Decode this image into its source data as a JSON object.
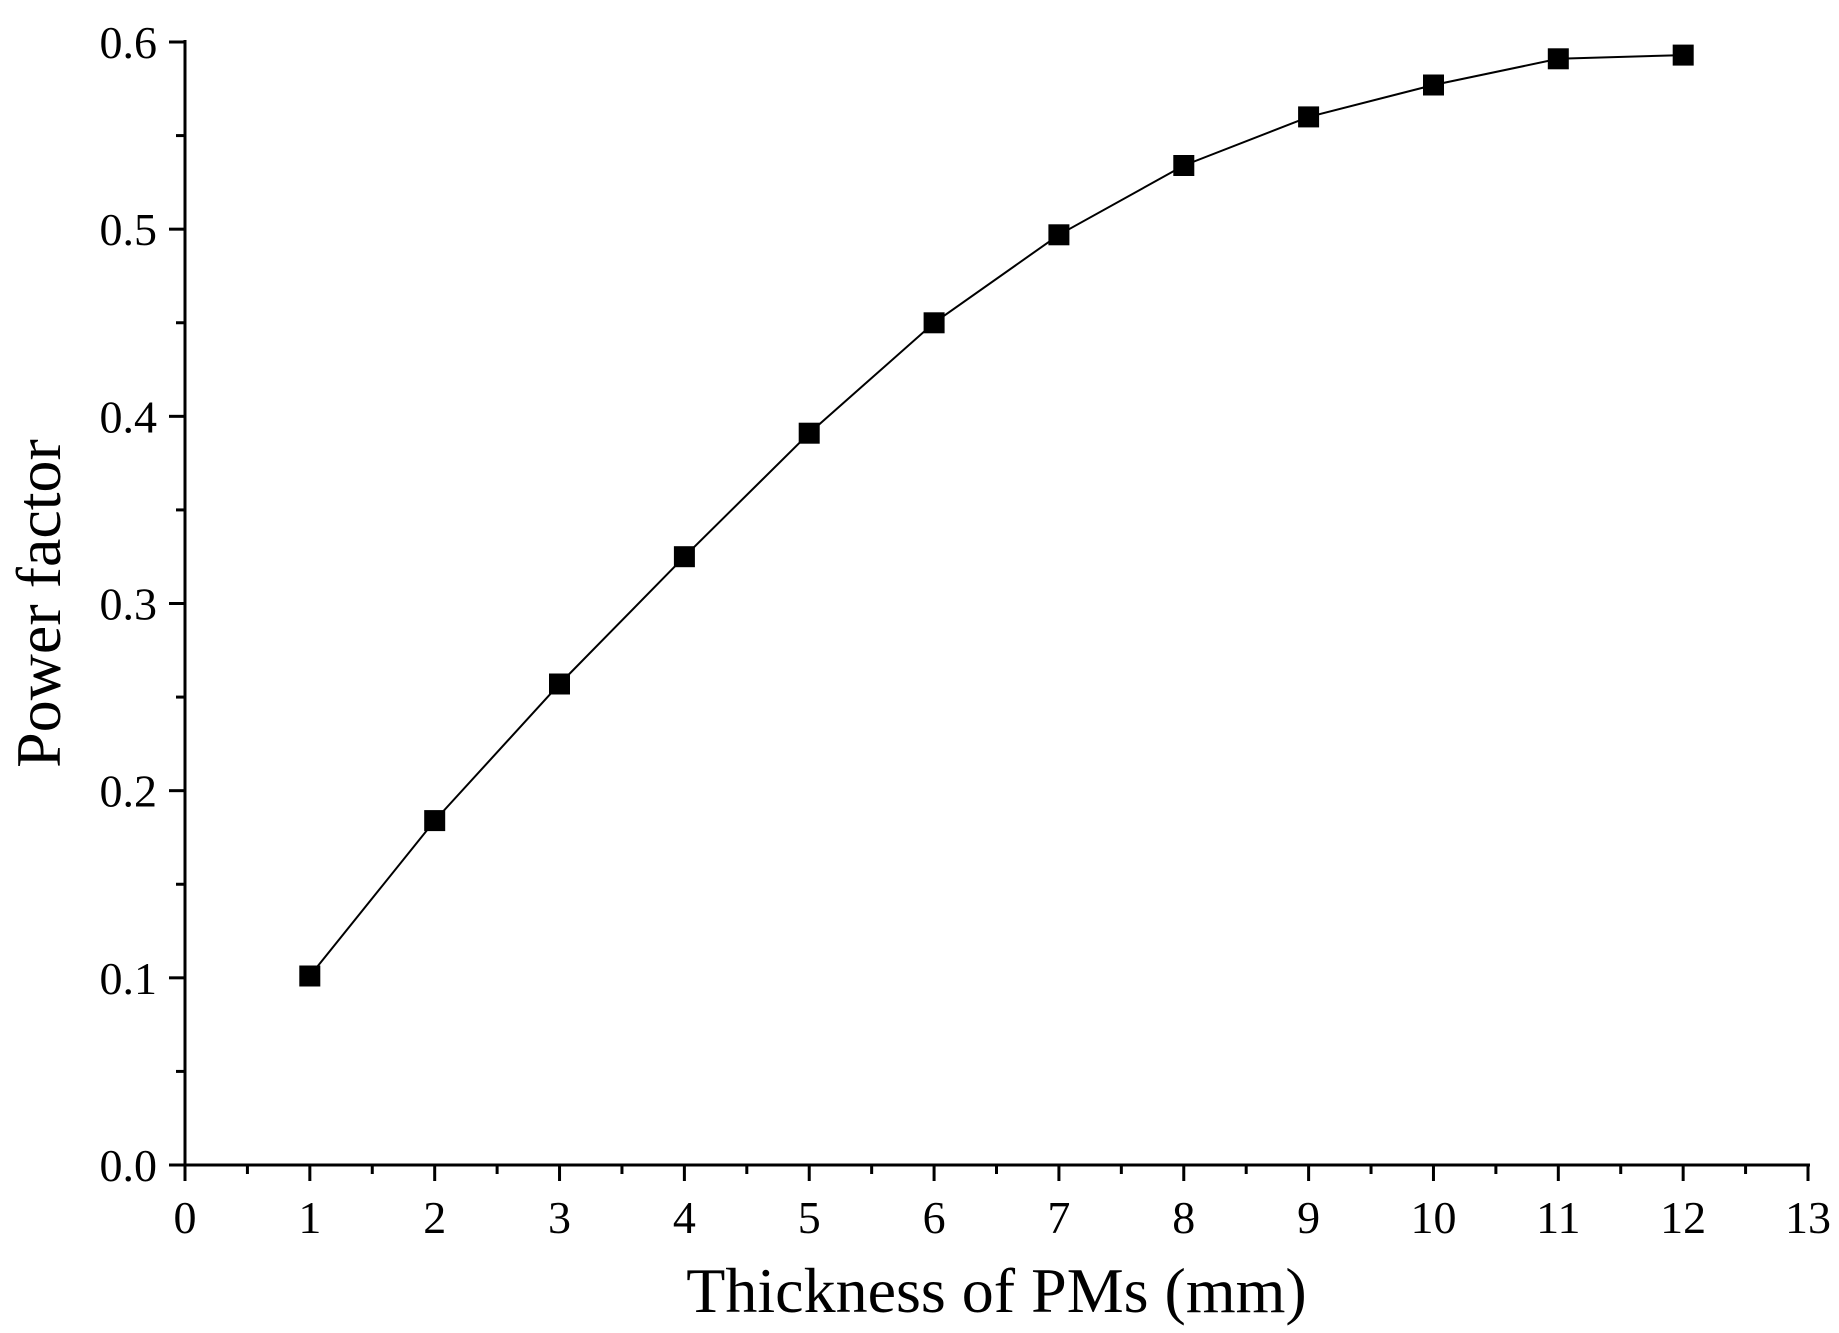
{
  "chart_data": {
    "type": "line",
    "title": "",
    "xlabel": "Thickness of PMs (mm)",
    "ylabel": "Power factor",
    "xlim": [
      0,
      13
    ],
    "ylim": [
      0.0,
      0.6
    ],
    "xticks": [
      "0",
      "1",
      "2",
      "3",
      "4",
      "5",
      "6",
      "7",
      "8",
      "9",
      "10",
      "11",
      "12",
      "13"
    ],
    "yticks": [
      "0.0",
      "0.1",
      "0.2",
      "0.3",
      "0.4",
      "0.5",
      "0.6"
    ],
    "grid": false,
    "legend": "none",
    "series": [
      {
        "marker": "square",
        "color": "#000000",
        "x": [
          1,
          2,
          3,
          4,
          5,
          6,
          7,
          8,
          9,
          10,
          11,
          12
        ],
        "y": [
          0.101,
          0.184,
          0.257,
          0.325,
          0.391,
          0.45,
          0.497,
          0.534,
          0.56,
          0.577,
          0.591,
          0.593
        ]
      }
    ]
  }
}
